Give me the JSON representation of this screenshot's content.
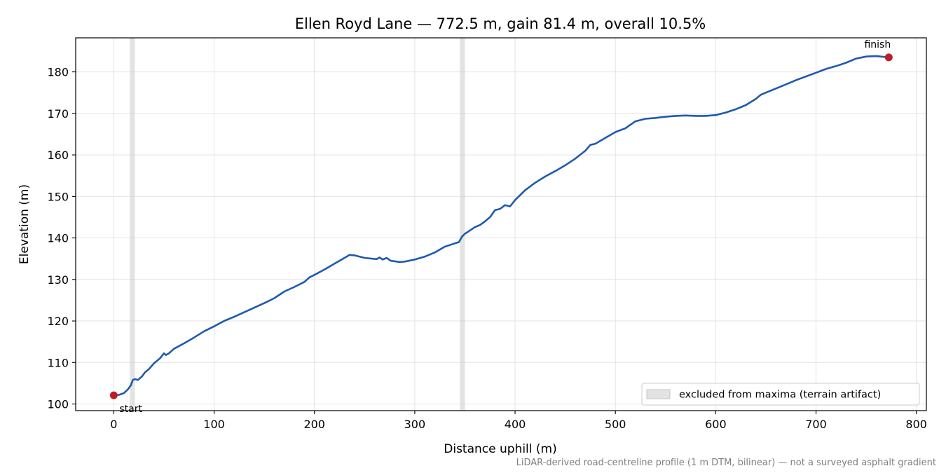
{
  "chart_data": {
    "type": "line",
    "title": "Ellen Royd Lane — 772.5 m, gain 81.4 m, overall 10.5%",
    "xlabel": "Distance uphill (m)",
    "ylabel": "Elevation (m)",
    "xlim": [
      -38,
      810
    ],
    "ylim": [
      98.4,
      188.2
    ],
    "xticks": [
      0,
      100,
      200,
      300,
      400,
      500,
      600,
      700,
      800
    ],
    "yticks": [
      100,
      110,
      120,
      130,
      140,
      150,
      160,
      170,
      180
    ],
    "grid": true,
    "legend_position": "lower-right",
    "colors": {
      "line": "#1f5aad",
      "marker": "#c01c28",
      "band": "#cccccc"
    },
    "series": [
      {
        "values": [
          [
            0,
            102.1
          ],
          [
            5,
            102.2
          ],
          [
            10,
            102.6
          ],
          [
            14,
            103.5
          ],
          [
            17,
            104.5
          ],
          [
            19,
            105.8
          ],
          [
            21,
            106.0
          ],
          [
            24,
            105.8
          ],
          [
            28,
            106.6
          ],
          [
            31,
            107.6
          ],
          [
            35,
            108.4
          ],
          [
            40,
            109.8
          ],
          [
            46,
            111.0
          ],
          [
            50,
            112.2
          ],
          [
            52,
            111.8
          ],
          [
            55,
            112.2
          ],
          [
            60,
            113.3
          ],
          [
            70,
            114.6
          ],
          [
            80,
            116.0
          ],
          [
            90,
            117.5
          ],
          [
            100,
            118.7
          ],
          [
            110,
            120.0
          ],
          [
            120,
            121.0
          ],
          [
            130,
            122.1
          ],
          [
            140,
            123.2
          ],
          [
            150,
            124.3
          ],
          [
            160,
            125.5
          ],
          [
            170,
            127.1
          ],
          [
            180,
            128.2
          ],
          [
            190,
            129.4
          ],
          [
            195,
            130.5
          ],
          [
            200,
            131.1
          ],
          [
            210,
            132.4
          ],
          [
            220,
            133.8
          ],
          [
            230,
            135.2
          ],
          [
            235,
            135.9
          ],
          [
            240,
            135.8
          ],
          [
            250,
            135.2
          ],
          [
            262,
            134.9
          ],
          [
            265,
            135.3
          ],
          [
            268,
            134.8
          ],
          [
            272,
            135.2
          ],
          [
            276,
            134.5
          ],
          [
            285,
            134.2
          ],
          [
            290,
            134.3
          ],
          [
            300,
            134.8
          ],
          [
            310,
            135.5
          ],
          [
            320,
            136.5
          ],
          [
            330,
            137.9
          ],
          [
            340,
            138.7
          ],
          [
            344,
            139.0
          ],
          [
            347,
            140.3
          ],
          [
            350,
            141.0
          ],
          [
            355,
            141.8
          ],
          [
            360,
            142.6
          ],
          [
            365,
            143.1
          ],
          [
            370,
            144.0
          ],
          [
            375,
            145.0
          ],
          [
            380,
            146.7
          ],
          [
            385,
            147.0
          ],
          [
            390,
            147.9
          ],
          [
            395,
            147.6
          ],
          [
            400,
            149.1
          ],
          [
            410,
            151.5
          ],
          [
            420,
            153.3
          ],
          [
            430,
            154.8
          ],
          [
            440,
            156.1
          ],
          [
            450,
            157.5
          ],
          [
            460,
            159.1
          ],
          [
            470,
            161.0
          ],
          [
            475,
            162.4
          ],
          [
            480,
            162.7
          ],
          [
            490,
            164.1
          ],
          [
            500,
            165.5
          ],
          [
            510,
            166.4
          ],
          [
            520,
            168.1
          ],
          [
            530,
            168.7
          ],
          [
            540,
            168.9
          ],
          [
            550,
            169.2
          ],
          [
            560,
            169.4
          ],
          [
            570,
            169.5
          ],
          [
            580,
            169.4
          ],
          [
            590,
            169.4
          ],
          [
            600,
            169.6
          ],
          [
            610,
            170.2
          ],
          [
            620,
            171.0
          ],
          [
            630,
            172.0
          ],
          [
            640,
            173.5
          ],
          [
            645,
            174.5
          ],
          [
            650,
            175.0
          ],
          [
            660,
            176.0
          ],
          [
            670,
            177.0
          ],
          [
            680,
            178.0
          ],
          [
            690,
            178.9
          ],
          [
            700,
            179.8
          ],
          [
            710,
            180.7
          ],
          [
            720,
            181.4
          ],
          [
            730,
            182.2
          ],
          [
            740,
            183.2
          ],
          [
            750,
            183.7
          ],
          [
            760,
            183.8
          ],
          [
            772.5,
            183.5
          ]
        ]
      }
    ],
    "excluded_bands": [
      [
        16,
        21
      ],
      [
        345,
        350
      ]
    ],
    "points": [
      {
        "x": 0,
        "y": 102.1,
        "label": "start"
      },
      {
        "x": 772.5,
        "y": 183.5,
        "label": "finish"
      }
    ],
    "legend": [
      "excluded from maxima (terrain artifact)"
    ],
    "footnote": "LiDAR-derived road-centreline profile (1 m DTM, bilinear) — not a surveyed asphalt gradient"
  }
}
